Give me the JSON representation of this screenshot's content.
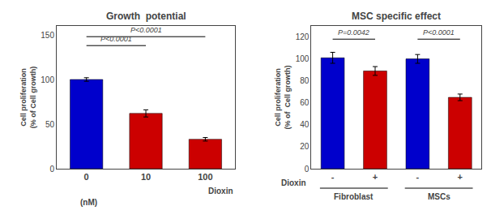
{
  "chart_data": [
    {
      "type": "bar",
      "title": "Growth  potential",
      "ylabel": "Cell proliferation\n(% of Cell growth)",
      "xlabel": [
        "Dioxin",
        "(nM)"
      ],
      "categories": [
        "0",
        "10",
        "100"
      ],
      "values": [
        100,
        62,
        33
      ],
      "errors": [
        2,
        4,
        2
      ],
      "colors": [
        "#0000cc",
        "#cc0000",
        "#cc0000"
      ],
      "ylim": [
        0,
        160
      ],
      "yticks": [
        0,
        50,
        100,
        150
      ],
      "grid": false,
      "annotations": [
        {
          "text": "P<0.0001",
          "x1": 0,
          "x2": 1,
          "y": 138
        },
        {
          "text": "P<0.0001",
          "x1": 0,
          "x2": 2,
          "y": 148
        }
      ]
    },
    {
      "type": "bar",
      "title": "MSC specific effect",
      "ylabel": "Cell proliferation\n(% of  Cell growth)",
      "xlabel": "Dioxin",
      "categories": [
        "-",
        "+",
        "-",
        "+"
      ],
      "groups": [
        "Fibroblast",
        "MSCs"
      ],
      "values": [
        101,
        89,
        100,
        65
      ],
      "errors": [
        5,
        4,
        4,
        3
      ],
      "colors": [
        "#0000cc",
        "#cc0000",
        "#0000cc",
        "#cc0000"
      ],
      "ylim": [
        0,
        130
      ],
      "yticks": [
        0,
        20,
        40,
        60,
        80,
        100,
        120
      ],
      "grid": false,
      "annotations": [
        {
          "text": "P=0.0042",
          "x1": 0,
          "x2": 1,
          "y": 118
        },
        {
          "text": "P<0.0001",
          "x1": 2,
          "x2": 3,
          "y": 118
        }
      ]
    }
  ]
}
